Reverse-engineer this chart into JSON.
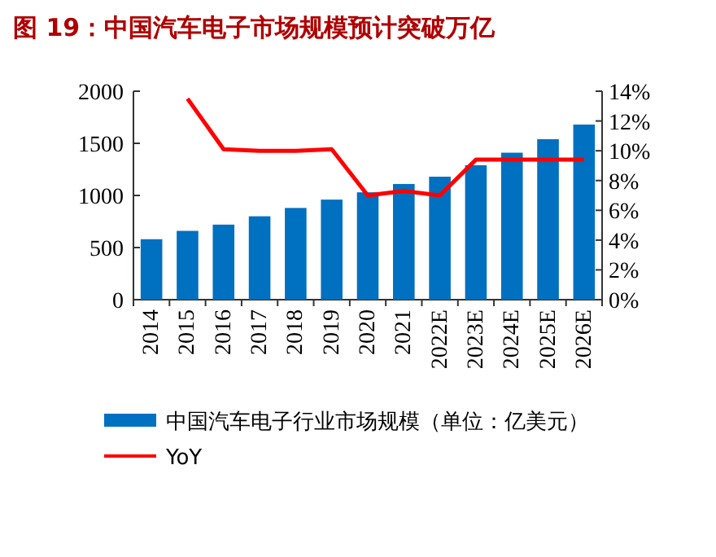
{
  "chart_data": {
    "type": "bar",
    "title": "图 19：中国汽车电子市场规模预计突破万亿",
    "categories": [
      "2014",
      "2015",
      "2016",
      "2017",
      "2018",
      "2019",
      "2020",
      "2021",
      "2022E",
      "2023E",
      "2024E",
      "2025E",
      "2026E"
    ],
    "series": [
      {
        "name": "中国汽车电子行业市场规模（单位：亿美元）",
        "color": "#0070c0",
        "values": [
          580,
          660,
          720,
          800,
          880,
          960,
          1030,
          1110,
          1180,
          1290,
          1410,
          1540,
          1680
        ]
      },
      {
        "name": "YoY",
        "type": "line",
        "axis": "y2",
        "color": "#ff0000",
        "values": [
          null,
          13.5,
          10.1,
          10.0,
          10.0,
          10.1,
          7.0,
          7.3,
          7.0,
          9.4,
          9.4,
          9.4,
          9.4
        ]
      }
    ],
    "ylim": [
      0,
      2000
    ],
    "yticks": [
      0,
      500,
      1000,
      1500,
      2000
    ],
    "y2lim": [
      0,
      14
    ],
    "y2ticks": [
      {
        "value": 0,
        "label": "0%"
      },
      {
        "value": 2,
        "label": "2%"
      },
      {
        "value": 4,
        "label": "4%"
      },
      {
        "value": 6,
        "label": "6%"
      },
      {
        "value": 8,
        "label": "8%"
      },
      {
        "value": 10,
        "label": "10%"
      },
      {
        "value": 12,
        "label": "12%"
      },
      {
        "value": 14,
        "label": "14%"
      }
    ],
    "grid": false,
    "legend": "bottom"
  }
}
